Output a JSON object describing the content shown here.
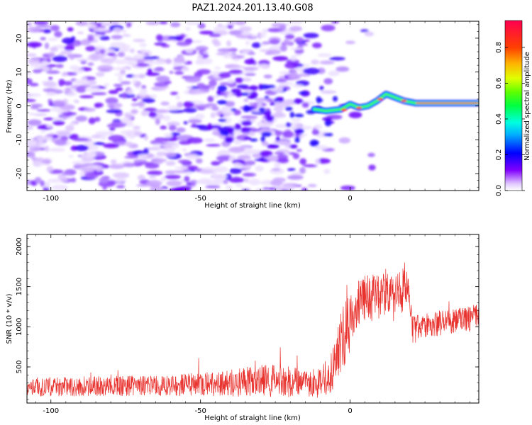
{
  "figure_title": "PAZ1.2024.201.13.40.G08",
  "colors": {
    "spectrogram_low": "#e8d8ff",
    "spectrogram_mid": "#7a00ff",
    "snr_line": "#e8322e",
    "frame": "#000000"
  },
  "chart_data": [
    {
      "type": "heatmap",
      "title": "",
      "xlabel": "Height of straight line (km)",
      "ylabel": "Frequency (Hz)",
      "xlim": [
        -108,
        43
      ],
      "ylim": [
        -25,
        25
      ],
      "x_ticks": [
        -100,
        -50,
        0
      ],
      "y_ticks": [
        -20,
        -10,
        0,
        10,
        20
      ],
      "colorbar": {
        "label": "Normalized spectral amplitude",
        "range": [
          0,
          0.95
        ],
        "ticks": [
          0.0,
          0.2,
          0.4,
          0.6,
          0.8
        ],
        "colormap": "gist_rainbow_r"
      },
      "ridge": {
        "description_points_x": [
          -12,
          -8,
          -3,
          0,
          3,
          6,
          9,
          12,
          15,
          18,
          22,
          30,
          43
        ],
        "frequency_hz": [
          -1,
          -1.5,
          -1,
          0.5,
          -0.5,
          0,
          1.5,
          3.5,
          2.5,
          1.5,
          0.8,
          0.8,
          0.8
        ]
      }
    },
    {
      "type": "line",
      "title": "",
      "xlabel": "Height of straight line (km)",
      "ylabel": "SNR (10 * v/v)",
      "xlim": [
        -108,
        43
      ],
      "ylim": [
        50,
        2150
      ],
      "x_ticks": [
        -100,
        -50,
        0
      ],
      "y_ticks": [
        500,
        1000,
        1500,
        2000
      ],
      "series": [
        {
          "x_range": [
            -108,
            43
          ],
          "profile_x": [
            -108,
            -60,
            -40,
            -30,
            -20,
            -15,
            -10,
            -7,
            -5,
            -3,
            -1,
            0,
            2,
            5,
            8,
            10,
            12,
            14,
            16,
            18,
            19,
            20,
            21,
            23,
            25,
            30,
            35,
            40,
            43
          ],
          "profile_y": [
            250,
            270,
            300,
            330,
            320,
            290,
            300,
            400,
            550,
            800,
            950,
            1100,
            1250,
            1350,
            1350,
            1400,
            1450,
            1350,
            1400,
            1500,
            1550,
            1200,
            950,
            1000,
            1020,
            1050,
            1070,
            1100,
            1150
          ],
          "noise_amplitude": [
            120,
            130,
            170,
            200,
            200,
            150,
            200,
            250,
            300,
            400,
            600,
            400,
            300,
            300,
            300,
            300,
            300,
            300,
            300,
            300,
            300,
            200,
            180,
            160,
            160,
            160,
            160,
            160,
            160
          ]
        }
      ]
    }
  ]
}
